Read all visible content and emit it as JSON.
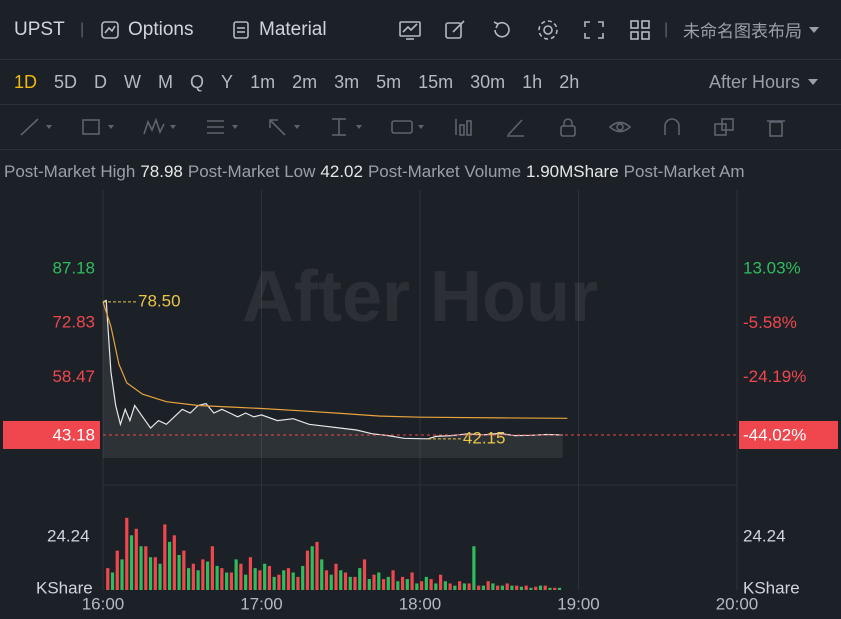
{
  "toolbar": {
    "symbol": "UPST",
    "buttons": [
      "Options",
      "Material"
    ],
    "layout_name": "未命名图表布局"
  },
  "timeframes": {
    "items": [
      "1D",
      "5D",
      "D",
      "W",
      "M",
      "Q",
      "Y",
      "1m",
      "2m",
      "3m",
      "5m",
      "15m",
      "30m",
      "1h",
      "2h"
    ],
    "active": 0,
    "session": "After Hours"
  },
  "stats": [
    {
      "label": "Post-Market High",
      "value": 78.98
    },
    {
      "label": "Post-Market Low",
      "value": 42.02
    },
    {
      "label": "Post-Market Volume",
      "value": "1.90MShare"
    },
    {
      "label": "Post-Market Am"
    }
  ],
  "chart_data": [
    {
      "type": "line",
      "watermark": "After Hour",
      "xlim": [
        16,
        20
      ],
      "ylim": [
        29.9,
        108.2
      ],
      "yticks": [
        58.47,
        72.83,
        87.18
      ],
      "y2lim": [
        -61.23,
        40.28
      ],
      "y2ticks": [
        {
          "value": -24.19,
          "label": "-24.19%"
        },
        {
          "value": -5.58,
          "label": "-5.58%"
        },
        {
          "value": 13.03,
          "label": "13.03%"
        }
      ],
      "last_price": 43.18,
      "last_change": {
        "value": -44.02,
        "label": "-44.02%"
      },
      "annotations": [
        {
          "x": 16,
          "value": 78.5,
          "label": "78.50"
        },
        {
          "x": 18.05,
          "value": 42.15,
          "label": "42.15"
        }
      ],
      "series": [
        {
          "color": "#e6e6e6",
          "x": [
            16.0,
            16.02,
            16.05,
            16.08,
            16.11,
            16.14,
            16.17,
            16.2,
            16.25,
            16.3,
            16.35,
            16.4,
            16.45,
            16.5,
            16.55,
            16.6,
            16.65,
            16.7,
            16.75,
            16.8,
            16.85,
            16.9,
            16.95,
            17.0,
            17.1,
            17.2,
            17.3,
            17.4,
            17.5,
            17.6,
            17.7,
            17.8,
            17.9,
            18.0,
            18.05,
            18.1,
            18.2,
            18.3,
            18.4,
            18.5,
            18.6,
            18.7,
            18.8,
            18.9
          ],
          "values": [
            78.5,
            78.9,
            60,
            51,
            46,
            50,
            47,
            51,
            48,
            45,
            47,
            46,
            48,
            50,
            49,
            51,
            51.5,
            49,
            50,
            49,
            48,
            49,
            48,
            48.5,
            47,
            47.5,
            46,
            45.5,
            45,
            44.5,
            43.5,
            43,
            42.3,
            42.2,
            42.15,
            42.8,
            43,
            43.5,
            43.2,
            43.6,
            43,
            43.1,
            43.3,
            43.18
          ]
        },
        {
          "color": "#e8a33d",
          "x": [
            16.0,
            16.05,
            16.1,
            16.15,
            16.25,
            16.4,
            16.6,
            16.8,
            17.0,
            17.25,
            17.5,
            17.75,
            18.0,
            18.5,
            18.93
          ],
          "values": [
            78.5,
            72,
            62,
            57,
            54,
            52,
            51,
            50.6,
            50.2,
            49.6,
            48.9,
            48.2,
            47.9,
            47.7,
            47.6
          ]
        }
      ]
    },
    {
      "type": "bar",
      "xlim": [
        16,
        20
      ],
      "xticks": [
        {
          "value": 16,
          "label": "16:00"
        },
        {
          "value": 17,
          "label": "17:00"
        },
        {
          "value": 18,
          "label": "18:00"
        },
        {
          "value": 19,
          "label": "19:00"
        },
        {
          "value": 20,
          "label": "20:00"
        }
      ],
      "ylim": [
        0,
        48
      ],
      "yticks": [
        24.24
      ],
      "y_unit": "KShare",
      "series": [
        {
          "color": "#f0474f",
          "x": [
            16.03,
            16.09,
            16.15,
            16.21,
            16.27,
            16.33,
            16.39,
            16.45,
            16.51,
            16.57,
            16.63,
            16.69,
            16.75,
            16.81,
            16.87,
            16.93,
            16.99,
            17.05,
            17.11,
            17.17,
            17.23,
            17.29,
            17.35,
            17.41,
            17.47,
            17.53,
            17.59,
            17.65,
            17.71,
            17.77,
            17.83,
            17.89,
            17.95,
            18.01,
            18.07,
            18.13,
            18.19,
            18.25,
            18.31,
            18.37,
            18.43,
            18.49,
            18.55,
            18.61,
            18.67,
            18.73,
            18.79,
            18.85
          ],
          "values": [
            10,
            18,
            33,
            28,
            20,
            15,
            30,
            25,
            18,
            12,
            14,
            20,
            10,
            8,
            12,
            15,
            9,
            11,
            7,
            10,
            6,
            18,
            22,
            9,
            12,
            8,
            6,
            14,
            7,
            5,
            9,
            6,
            8,
            4,
            5,
            7,
            3,
            4,
            3,
            2,
            4,
            2,
            3,
            2,
            2,
            1.5,
            2,
            1
          ]
        },
        {
          "color": "#2ebd5c",
          "x": [
            16.06,
            16.12,
            16.18,
            16.24,
            16.3,
            16.36,
            16.42,
            16.48,
            16.54,
            16.6,
            16.66,
            16.72,
            16.78,
            16.84,
            16.9,
            16.96,
            17.02,
            17.08,
            17.14,
            17.2,
            17.26,
            17.32,
            17.38,
            17.44,
            17.5,
            17.56,
            17.62,
            17.68,
            17.74,
            17.8,
            17.86,
            17.92,
            17.98,
            18.04,
            18.1,
            18.16,
            18.22,
            18.28,
            18.34,
            18.4,
            18.46,
            18.52,
            18.58,
            18.64,
            18.7,
            18.76,
            18.82,
            18.88
          ],
          "values": [
            8,
            14,
            25,
            20,
            15,
            12,
            22,
            16,
            10,
            9,
            13,
            11,
            8,
            14,
            7,
            10,
            12,
            6,
            9,
            8,
            11,
            20,
            14,
            7,
            9,
            6,
            10,
            5,
            8,
            6,
            4,
            5,
            3,
            6,
            3,
            4,
            2,
            3,
            20,
            2,
            3,
            2,
            2,
            1.5,
            1,
            2,
            1,
            1
          ]
        }
      ]
    }
  ]
}
